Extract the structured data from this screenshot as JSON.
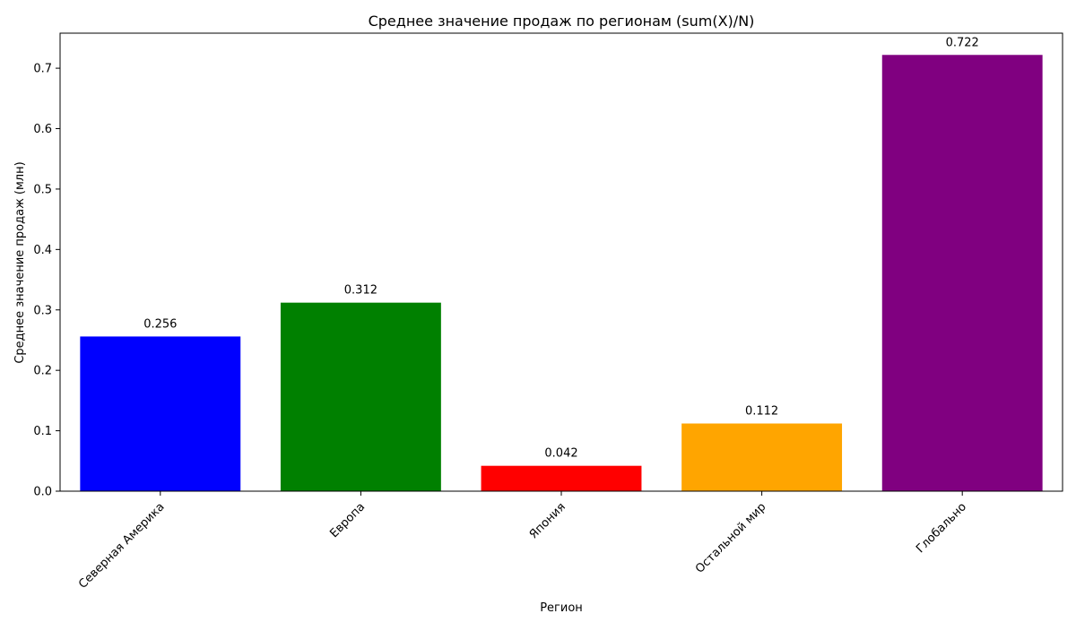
{
  "chart_data": {
    "type": "bar",
    "title": "Среднее значение продаж по регионам (sum(X)/N)",
    "xlabel": "Регион",
    "ylabel": "Среднее значение продаж (млн)",
    "categories": [
      "Северная Америка",
      "Европа",
      "Япония",
      "Остальной мир",
      "Глобально"
    ],
    "values": [
      0.256,
      0.312,
      0.042,
      0.112,
      0.722
    ],
    "value_labels": [
      "0.256",
      "0.312",
      "0.042",
      "0.112",
      "0.722"
    ],
    "colors": [
      "#0000ff",
      "#008000",
      "#ff0000",
      "#ffa500",
      "#800080"
    ],
    "ylim": [
      0,
      0.758
    ],
    "yticks": [
      0.0,
      0.1,
      0.2,
      0.3,
      0.4,
      0.5,
      0.6,
      0.7
    ],
    "ytick_labels": [
      "0.0",
      "0.1",
      "0.2",
      "0.3",
      "0.4",
      "0.5",
      "0.6",
      "0.7"
    ],
    "grid": false,
    "legend": "none",
    "xtick_rotation_deg": 45
  }
}
